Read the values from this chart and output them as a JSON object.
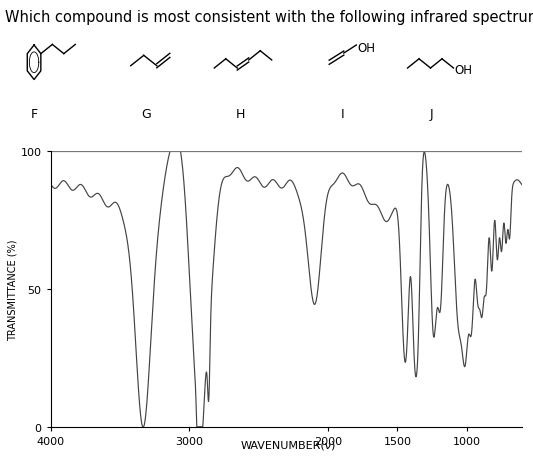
{
  "title": "Which compound is most consistent with the following infrared spectrum?",
  "title_fontsize": 10.5,
  "xlabel": "WAVENUMBER(ν)",
  "ylabel": "TRANSMITTANCE (%)",
  "xlim": [
    4000,
    600
  ],
  "ylim": [
    0,
    100
  ],
  "yticks": [
    0,
    50,
    100
  ],
  "xticks": [
    4000,
    3000,
    2000,
    1500,
    1000
  ],
  "background_color": "#ffffff",
  "line_color": "#444444",
  "fig_width": 5.33,
  "fig_height": 4.6,
  "dpi": 100
}
